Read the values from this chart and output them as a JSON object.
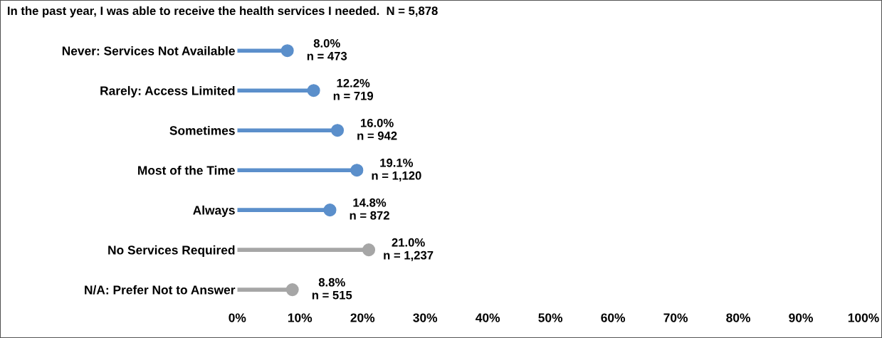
{
  "chart_data": {
    "type": "lollipop",
    "orientation": "horizontal",
    "title": "In the past year, I was able to receive the health services I needed.  N = 5,878",
    "categories": [
      "Never: Services Not Available",
      "Rarely: Access Limited",
      "Sometimes",
      "Most of the Time",
      "Always",
      "No Services Required",
      "N/A: Prefer Not to Answer"
    ],
    "values": [
      8.0,
      12.2,
      16.0,
      19.1,
      14.8,
      21.0,
      8.8
    ],
    "colors": [
      "#5b8fcb",
      "#5b8fcb",
      "#5b8fcb",
      "#5b8fcb",
      "#5b8fcb",
      "#a6a6a6",
      "#a6a6a6"
    ],
    "value_labels": [
      "8.0%\nn = 473",
      "12.2%\nn = 719",
      "16.0%\nn = 942",
      "19.1%\nn = 1,120",
      "14.8%\nn = 872",
      "21.0%\nn = 1,237",
      "8.8%\nn = 515"
    ],
    "xlim": [
      0,
      100
    ],
    "xticks": [
      {
        "value": 0,
        "label": "0%"
      },
      {
        "value": 10,
        "label": "10%"
      },
      {
        "value": 20,
        "label": "20%"
      },
      {
        "value": 30,
        "label": "30%"
      },
      {
        "value": 40,
        "label": "40%"
      },
      {
        "value": 50,
        "label": "50%"
      },
      {
        "value": 60,
        "label": "60%"
      },
      {
        "value": 70,
        "label": "70%"
      },
      {
        "value": 80,
        "label": "80%"
      },
      {
        "value": 90,
        "label": "90%"
      },
      {
        "value": 100,
        "label": "100%"
      }
    ],
    "grid": false,
    "legend": false,
    "marker": "circle"
  }
}
